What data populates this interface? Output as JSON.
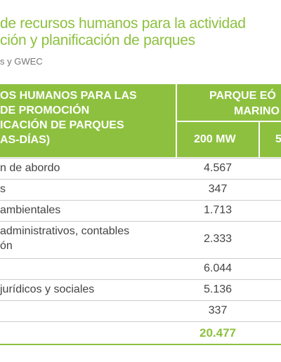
{
  "header": {
    "title_lines": [
      "de recursos humanos para la actividad",
      "ción y planificación de parques"
    ],
    "source": "s y GWEC"
  },
  "table": {
    "head_left": [
      "OS HUMANOS PARA LAS",
      "DE PROMOCIÓN",
      "ICACIÓN DE PARQUES",
      "AS-DÍAS)"
    ],
    "head_group": [
      "PARQUE EÓ",
      "MARINO"
    ],
    "head_cols": [
      "200 MW",
      "5"
    ],
    "rows": [
      {
        "label": [
          "n de abordo"
        ],
        "value": "4.567"
      },
      {
        "label": [
          "s"
        ],
        "value": "347"
      },
      {
        "label": [
          "ambientales"
        ],
        "value": "1.713"
      },
      {
        "label": [
          "administrativos, contables",
          "ón"
        ],
        "value": "2.333"
      },
      {
        "value": "6.044"
      },
      {
        "label": [
          "jurídicos y sociales"
        ],
        "value": "5.136"
      },
      {
        "value": "337"
      }
    ],
    "total": "20.477"
  }
}
